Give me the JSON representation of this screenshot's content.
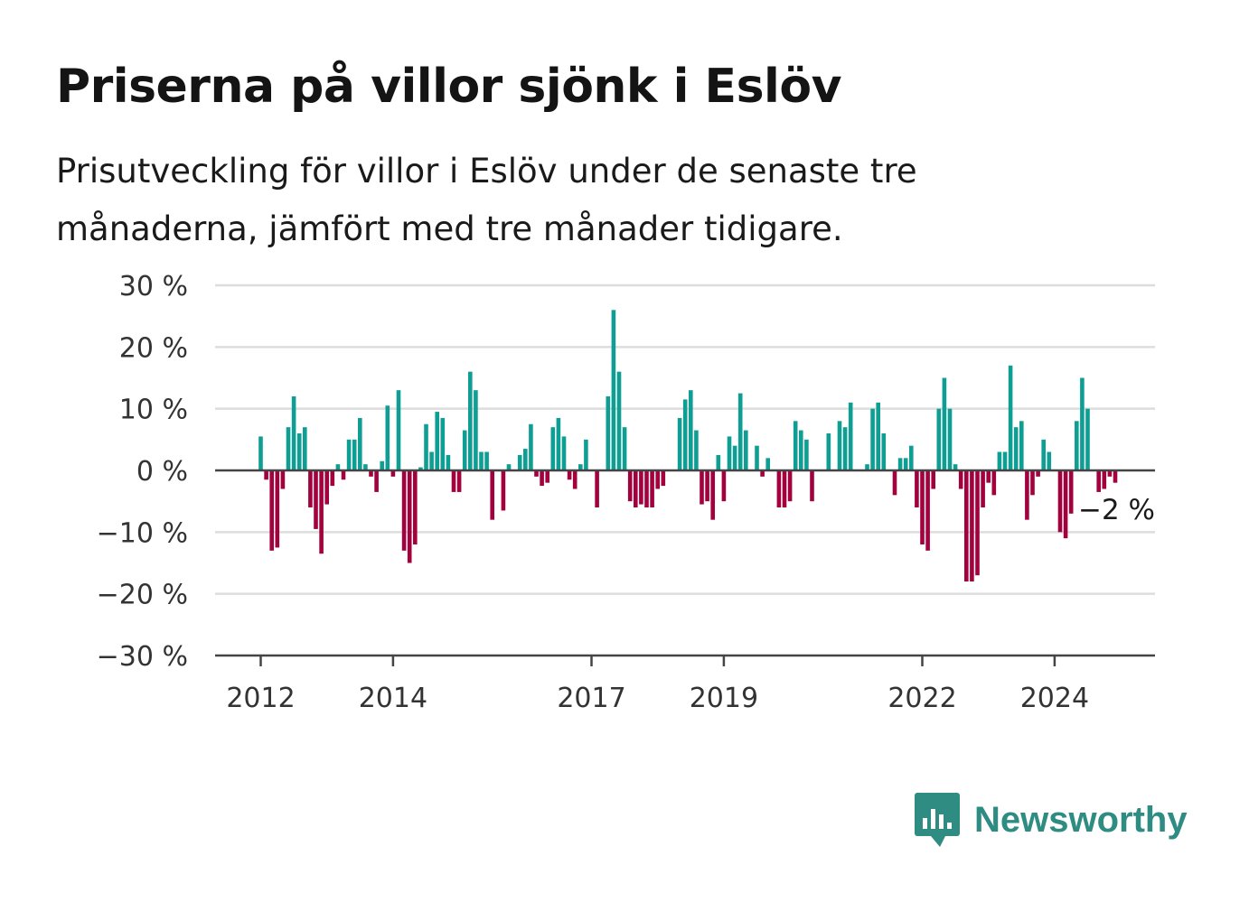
{
  "title": "Priserna på villor sjönk i Eslöv",
  "subtitle": "Prisutveckling för villor i Eslöv under de senaste tre månaderna, jämfört med tre månader tidigare.",
  "brand": {
    "name": "Newsworthy",
    "icon": "chart-bubble-icon"
  },
  "colors": {
    "positive": "#0e9e94",
    "negative": "#a3003e",
    "grid": "#dddddd",
    "axis": "#444444"
  },
  "chart_data": {
    "type": "bar",
    "x_start": "2012-01",
    "interval": "month",
    "ylim": [
      -30,
      30
    ],
    "yticks": [
      30,
      20,
      10,
      0,
      -10,
      -20,
      -30
    ],
    "ytick_labels": [
      "30 %",
      "20 %",
      "10 %",
      "0 %",
      "−10 %",
      "−20 %",
      "−30 %"
    ],
    "xticks": [
      "2012",
      "2014",
      "2017",
      "2019",
      "2022",
      "2024"
    ],
    "annotation": "−2 %",
    "grid": true,
    "values": [
      5.5,
      -1.5,
      -13,
      -12.5,
      -3,
      7,
      12,
      6,
      7,
      -6,
      -9.5,
      -13.5,
      -5.5,
      -2.5,
      1,
      -1.5,
      5,
      5,
      8.5,
      1,
      -1,
      -3.5,
      1.5,
      10.5,
      -1,
      13,
      -13,
      -15,
      -12,
      0.5,
      7.5,
      3,
      9.5,
      8.5,
      2.5,
      -3.5,
      -3.5,
      6.5,
      16,
      13,
      3,
      3,
      -8,
      0,
      -6.5,
      1,
      0,
      2.5,
      3.5,
      7.5,
      -1,
      -2.5,
      -2,
      7,
      8.5,
      5.5,
      -1.5,
      -3,
      1,
      5,
      0,
      -6,
      0,
      12,
      26,
      16,
      7,
      -5,
      -6,
      -5.5,
      -6,
      -6,
      -3,
      -2.5,
      0,
      0,
      8.5,
      11.5,
      13,
      6.5,
      -5.5,
      -5,
      -8,
      2.5,
      -5,
      5.5,
      4,
      12.5,
      6.5,
      0,
      4,
      -1,
      2,
      0,
      -6,
      -6,
      -5,
      8,
      6.5,
      5,
      -5,
      0,
      0,
      6,
      0,
      8,
      7,
      11,
      0,
      0,
      1,
      10,
      11,
      6,
      0,
      -4,
      2,
      2,
      4,
      -6,
      -12,
      -13,
      -3,
      10,
      15,
      10,
      1,
      -3,
      -18,
      -18,
      -17,
      -6,
      -2,
      -4,
      3,
      3,
      17,
      7,
      8,
      -8,
      -4,
      -1,
      5,
      3,
      0,
      -10,
      -11,
      -7,
      8,
      15,
      10,
      0,
      -3.5,
      -3,
      -1,
      -2
    ]
  }
}
